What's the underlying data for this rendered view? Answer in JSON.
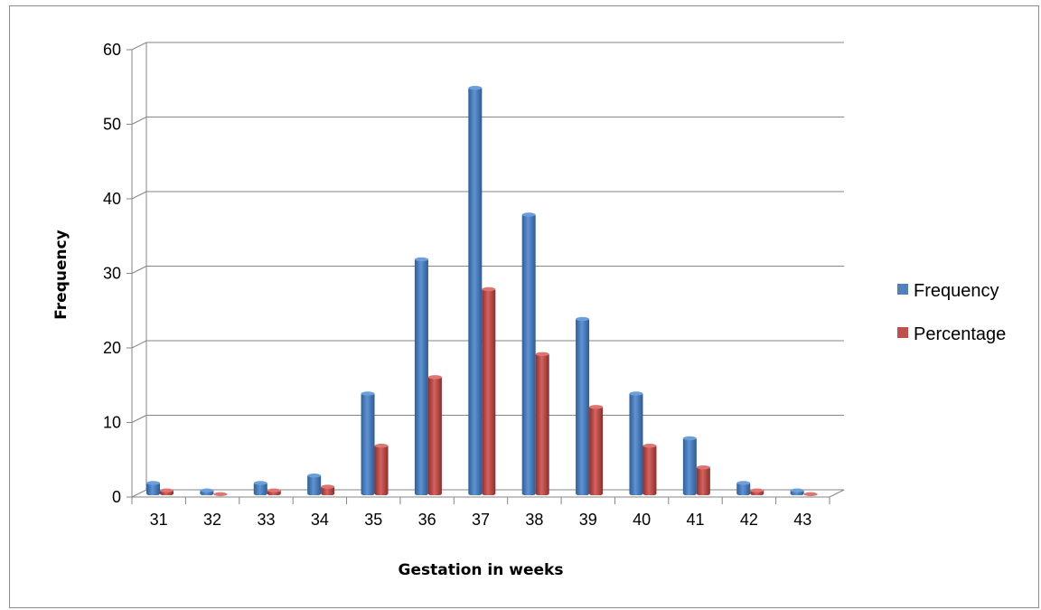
{
  "chart_data": {
    "type": "bar",
    "title": "",
    "xlabel": "Gestation in weeks",
    "ylabel": "Frequency",
    "ylim": [
      0,
      60
    ],
    "yticks": [
      0,
      10,
      20,
      30,
      40,
      50,
      60
    ],
    "grid": true,
    "legend_position": "right",
    "categories": [
      "31",
      "32",
      "33",
      "34",
      "35",
      "36",
      "37",
      "38",
      "39",
      "40",
      "41",
      "42",
      "43"
    ],
    "series": [
      {
        "name": "Frequency",
        "color": "#4F81BD",
        "values": [
          2,
          1,
          2,
          3,
          14,
          32,
          55,
          38,
          24,
          14,
          8,
          2,
          1
        ]
      },
      {
        "name": "Percentage",
        "color": "#C0504D",
        "values": [
          1,
          0.5,
          1,
          1.5,
          7,
          16.2,
          28,
          19.3,
          12.2,
          7,
          4.1,
          1,
          0.5
        ]
      }
    ]
  }
}
